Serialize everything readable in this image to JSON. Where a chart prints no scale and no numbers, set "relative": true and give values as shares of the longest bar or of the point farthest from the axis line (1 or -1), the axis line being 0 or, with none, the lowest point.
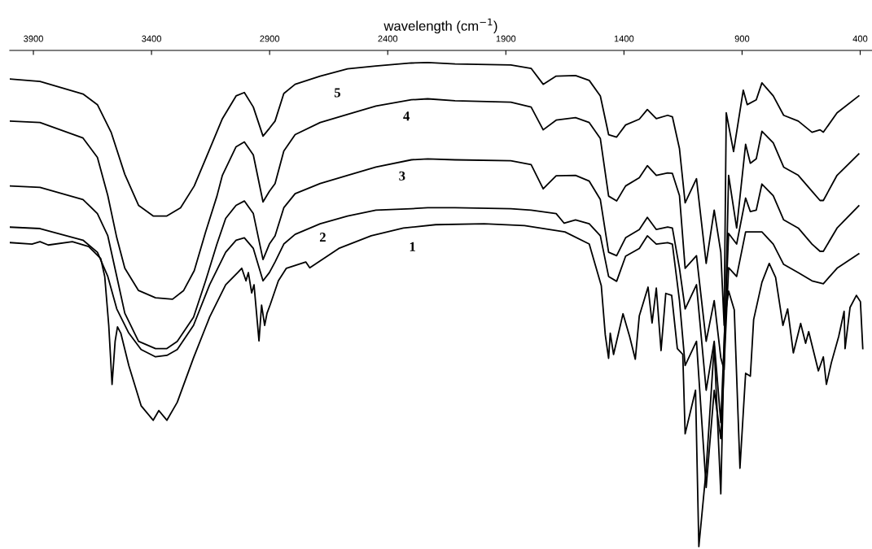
{
  "chart_data": {
    "type": "line",
    "relative": true,
    "xlabel": "wavelength (cm$^{−1}$)",
    "xlim": [
      4000,
      350
    ],
    "xticks": [
      3900,
      3400,
      2900,
      2400,
      1900,
      1400,
      900,
      400
    ],
    "series": [
      {
        "name": "1",
        "color": "#000000",
        "x": [
          4000,
          3906,
          3872,
          3837,
          3735,
          3666,
          3615,
          3598,
          3581,
          3567,
          3554,
          3544,
          3530,
          3496,
          3444,
          3393,
          3369,
          3335,
          3291,
          3222,
          3154,
          3086,
          3035,
          3018,
          3000,
          2990,
          2976,
          2966,
          2945,
          2934,
          2921,
          2911,
          2898,
          2863,
          2829,
          2747,
          2730,
          2607,
          2470,
          2334,
          2197,
          1992,
          1821,
          1650,
          1547,
          1496,
          1479,
          1465,
          1458,
          1444,
          1404,
          1376,
          1352,
          1335,
          1298,
          1281,
          1263,
          1243,
          1223,
          1198,
          1174,
          1151,
          1141,
          1097,
          1083,
          1052,
          1018,
          990,
          973,
          957,
          933,
          909,
          885,
          865,
          851,
          816,
          785,
          758,
          727,
          707,
          683,
          652,
          631,
          618,
          577,
          556,
          543,
          522,
          491,
          468,
          464,
          443,
          416,
          399,
          389
        ],
        "values": [
          0.628,
          0.625,
          0.63,
          0.623,
          0.63,
          0.62,
          0.595,
          0.558,
          0.457,
          0.335,
          0.424,
          0.454,
          0.441,
          0.374,
          0.291,
          0.261,
          0.281,
          0.261,
          0.298,
          0.39,
          0.474,
          0.541,
          0.566,
          0.575,
          0.549,
          0.566,
          0.524,
          0.541,
          0.425,
          0.499,
          0.457,
          0.482,
          0.499,
          0.549,
          0.575,
          0.588,
          0.576,
          0.616,
          0.642,
          0.658,
          0.665,
          0.667,
          0.663,
          0.65,
          0.625,
          0.539,
          0.437,
          0.389,
          0.441,
          0.397,
          0.481,
          0.434,
          0.387,
          0.477,
          0.536,
          0.462,
          0.534,
          0.405,
          0.523,
          0.519,
          0.409,
          0.397,
          0.233,
          0.323,
          0.0,
          0.159,
          0.415,
          0.109,
          0.471,
          0.528,
          0.489,
          0.162,
          0.358,
          0.352,
          0.469,
          0.546,
          0.585,
          0.556,
          0.457,
          0.491,
          0.4,
          0.461,
          0.42,
          0.444,
          0.363,
          0.392,
          0.335,
          0.38,
          0.434,
          0.486,
          0.409,
          0.494,
          0.519,
          0.506,
          0.409
        ]
      },
      {
        "name": "2",
        "color": "#000000",
        "x": [
          4000,
          3872,
          3690,
          3629,
          3585,
          3547,
          3496,
          3444,
          3383,
          3335,
          3291,
          3222,
          3154,
          3086,
          3042,
          3007,
          2969,
          2928,
          2901,
          2877,
          2840,
          2792,
          2686,
          2570,
          2450,
          2300,
          2231,
          2115,
          1879,
          1793,
          1687,
          1653,
          1605,
          1547,
          1500,
          1465,
          1431,
          1393,
          1335,
          1301,
          1263,
          1215,
          1195,
          1165,
          1141,
          1093,
          1052,
          1018,
          990,
          957,
          923,
          885,
          816,
          768,
          724,
          662,
          604,
          556,
          498,
          406
        ],
        "values": [
          0.66,
          0.657,
          0.633,
          0.608,
          0.558,
          0.491,
          0.441,
          0.407,
          0.392,
          0.395,
          0.407,
          0.457,
          0.541,
          0.608,
          0.633,
          0.638,
          0.616,
          0.549,
          0.566,
          0.588,
          0.625,
          0.645,
          0.667,
          0.683,
          0.695,
          0.698,
          0.7,
          0.7,
          0.698,
          0.695,
          0.688,
          0.668,
          0.675,
          0.667,
          0.642,
          0.558,
          0.548,
          0.6,
          0.616,
          0.642,
          0.625,
          0.628,
          0.625,
          0.508,
          0.374,
          0.424,
          0.122,
          0.323,
          0.223,
          0.576,
          0.558,
          0.65,
          0.65,
          0.625,
          0.583,
          0.566,
          0.549,
          0.543,
          0.575,
          0.605
        ]
      },
      {
        "name": "3",
        "color": "#000000",
        "x": [
          4000,
          3872,
          3690,
          3629,
          3585,
          3547,
          3513,
          3455,
          3383,
          3335,
          3291,
          3222,
          3171,
          3123,
          3086,
          3042,
          3007,
          2969,
          2928,
          2901,
          2877,
          2840,
          2792,
          2686,
          2570,
          2450,
          2300,
          2231,
          2115,
          1879,
          1793,
          1742,
          1687,
          1605,
          1547,
          1500,
          1465,
          1431,
          1393,
          1335,
          1301,
          1263,
          1215,
          1195,
          1165,
          1141,
          1093,
          1052,
          1018,
          990,
          957,
          923,
          885,
          865,
          840,
          816,
          768,
          724,
          662,
          604,
          570,
          556,
          498,
          406
        ],
        "values": [
          0.745,
          0.742,
          0.717,
          0.688,
          0.642,
          0.558,
          0.482,
          0.424,
          0.409,
          0.409,
          0.424,
          0.474,
          0.549,
          0.625,
          0.678,
          0.705,
          0.714,
          0.688,
          0.593,
          0.625,
          0.642,
          0.7,
          0.729,
          0.75,
          0.767,
          0.784,
          0.799,
          0.801,
          0.799,
          0.797,
          0.789,
          0.739,
          0.766,
          0.767,
          0.755,
          0.717,
          0.608,
          0.601,
          0.638,
          0.655,
          0.68,
          0.655,
          0.66,
          0.658,
          0.575,
          0.491,
          0.541,
          0.323,
          0.424,
          0.256,
          0.647,
          0.625,
          0.72,
          0.692,
          0.695,
          0.749,
          0.725,
          0.675,
          0.658,
          0.625,
          0.61,
          0.61,
          0.658,
          0.704
        ]
      },
      {
        "name": "4",
        "color": "#000000",
        "x": [
          4000,
          3872,
          3690,
          3629,
          3585,
          3547,
          3513,
          3455,
          3383,
          3311,
          3264,
          3219,
          3171,
          3123,
          3100,
          3042,
          3007,
          2969,
          2928,
          2901,
          2877,
          2840,
          2792,
          2686,
          2570,
          2450,
          2300,
          2231,
          2115,
          1879,
          1793,
          1742,
          1687,
          1605,
          1547,
          1500,
          1465,
          1431,
          1393,
          1335,
          1301,
          1263,
          1215,
          1195,
          1165,
          1141,
          1093,
          1052,
          1018,
          990,
          976,
          957,
          923,
          885,
          865,
          840,
          816,
          768,
          724,
          662,
          604,
          570,
          556,
          498,
          406
        ],
        "values": [
          0.879,
          0.876,
          0.844,
          0.804,
          0.725,
          0.638,
          0.575,
          0.529,
          0.514,
          0.511,
          0.529,
          0.57,
          0.65,
          0.724,
          0.767,
          0.826,
          0.836,
          0.809,
          0.712,
          0.734,
          0.75,
          0.817,
          0.851,
          0.876,
          0.893,
          0.91,
          0.923,
          0.925,
          0.921,
          0.918,
          0.908,
          0.861,
          0.881,
          0.886,
          0.876,
          0.843,
          0.724,
          0.714,
          0.745,
          0.762,
          0.787,
          0.767,
          0.772,
          0.771,
          0.725,
          0.575,
          0.601,
          0.424,
          0.508,
          0.39,
          0.365,
          0.767,
          0.658,
          0.831,
          0.792,
          0.801,
          0.858,
          0.834,
          0.784,
          0.767,
          0.734,
          0.715,
          0.715,
          0.767,
          0.811
        ]
      },
      {
        "name": "5",
        "color": "#000000",
        "x": [
          4000,
          3872,
          3690,
          3629,
          3571,
          3513,
          3455,
          3393,
          3335,
          3277,
          3219,
          3158,
          3100,
          3042,
          3007,
          2969,
          2928,
          2901,
          2877,
          2840,
          2792,
          2686,
          2570,
          2450,
          2300,
          2231,
          2115,
          1879,
          1793,
          1742,
          1687,
          1605,
          1547,
          1500,
          1465,
          1431,
          1393,
          1335,
          1301,
          1263,
          1215,
          1195,
          1165,
          1141,
          1093,
          1052,
          1018,
          990,
          976,
          967,
          936,
          895,
          878,
          840,
          816,
          768,
          724,
          662,
          604,
          570,
          556,
          498,
          406
        ],
        "values": [
          0.966,
          0.961,
          0.935,
          0.913,
          0.856,
          0.769,
          0.705,
          0.683,
          0.683,
          0.7,
          0.745,
          0.816,
          0.884,
          0.931,
          0.938,
          0.908,
          0.848,
          0.864,
          0.879,
          0.936,
          0.955,
          0.972,
          0.987,
          0.993,
          0.999,
          1.0,
          0.997,
          0.995,
          0.988,
          0.955,
          0.972,
          0.973,
          0.963,
          0.931,
          0.851,
          0.846,
          0.871,
          0.883,
          0.903,
          0.884,
          0.891,
          0.888,
          0.822,
          0.71,
          0.76,
          0.585,
          0.695,
          0.608,
          0.457,
          0.896,
          0.816,
          0.943,
          0.913,
          0.923,
          0.958,
          0.931,
          0.891,
          0.879,
          0.856,
          0.861,
          0.856,
          0.896,
          0.931
        ]
      }
    ]
  }
}
